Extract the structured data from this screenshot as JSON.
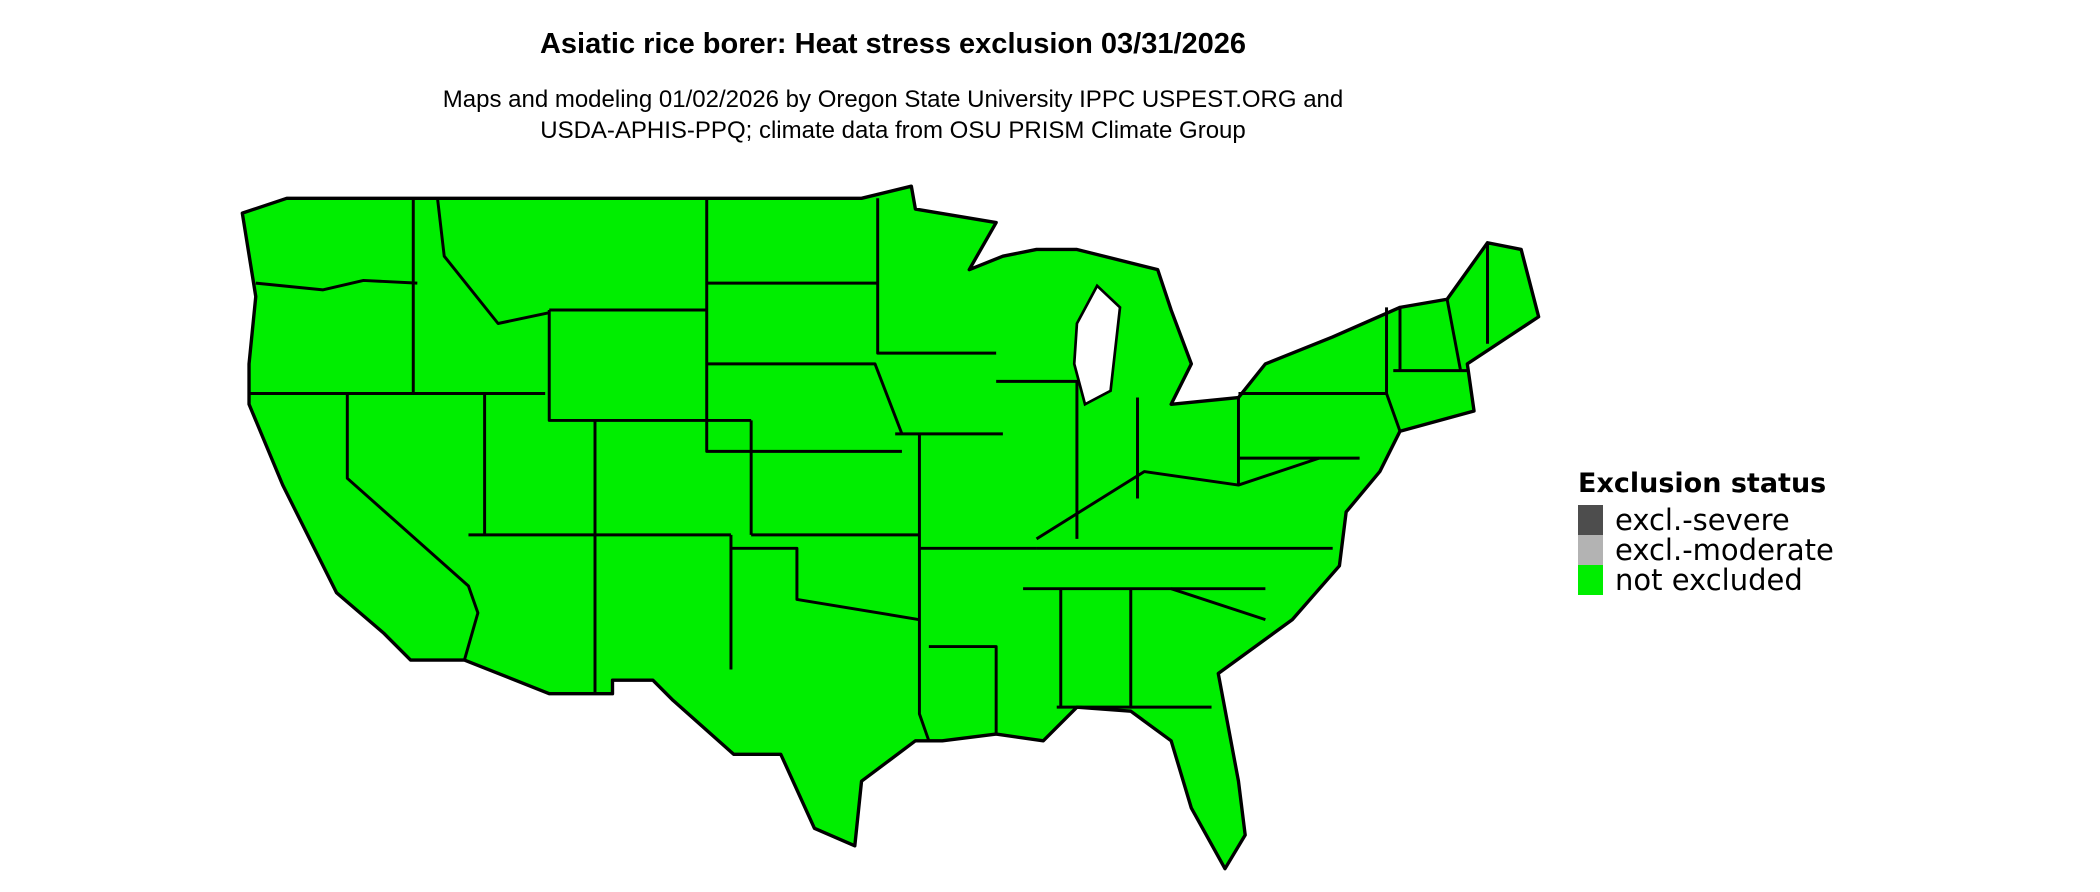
{
  "title": "Asiatic rice borer: Heat stress exclusion 03/31/2026",
  "subtitle": {
    "line1": "Maps and modeling 01/02/2026 by Oregon State University IPPC USPEST.ORG and",
    "line2": "USDA-APHIS-PPQ; climate data from OSU PRISM Climate Group"
  },
  "map": {
    "region": "Contiguous United States",
    "fill_status": "not excluded",
    "fill_color": "#00ee00",
    "border_color": "#000000"
  },
  "legend": {
    "title": "Exclusion status",
    "items": [
      {
        "label": "excl.-severe",
        "color": "#4d4d4d"
      },
      {
        "label": "excl.-moderate",
        "color": "#b3b3b3"
      },
      {
        "label": "not excluded",
        "color": "#00ee00"
      }
    ]
  }
}
